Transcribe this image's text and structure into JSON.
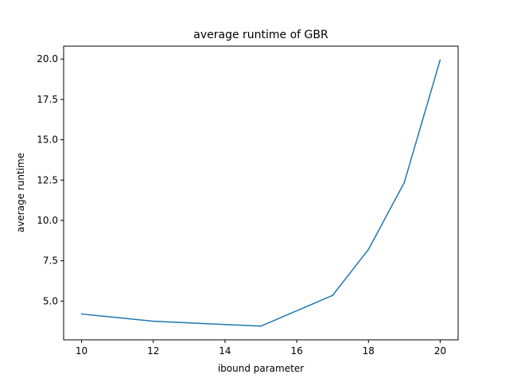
{
  "chart_data": {
    "type": "line",
    "title": "average runtime of GBR",
    "xlabel": "ibound parameter",
    "ylabel": "average runtime",
    "xlim": [
      9.5,
      20.5
    ],
    "ylim": [
      2.6,
      20.8
    ],
    "x_ticks": [
      10,
      12,
      14,
      16,
      18,
      20
    ],
    "x_tick_labels": [
      "10",
      "12",
      "14",
      "16",
      "18",
      "20"
    ],
    "y_ticks": [
      5.0,
      7.5,
      10.0,
      12.5,
      15.0,
      17.5,
      20.0
    ],
    "y_tick_labels": [
      "5.0",
      "7.5",
      "10.0",
      "12.5",
      "15.0",
      "17.5",
      "20.0"
    ],
    "grid": false,
    "series": [
      {
        "x": [
          10,
          12,
          15,
          17,
          18,
          19,
          20
        ],
        "values": [
          4.2,
          3.75,
          3.45,
          5.35,
          8.2,
          12.35,
          19.95
        ],
        "color": "#1f77b4"
      }
    ]
  }
}
